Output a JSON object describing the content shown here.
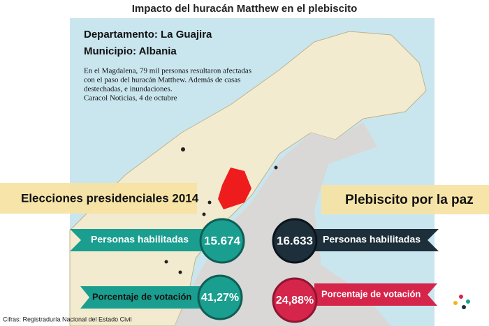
{
  "header": {
    "title": "Impacto del huracán Matthew en el plebiscito"
  },
  "location": {
    "department": "Departamento: La Guajira",
    "municipality": "Municipio: Albania"
  },
  "note": {
    "lines": [
      "En el Magdalena, 79 mil personas resultaron afectadas",
      "con el paso del huracán Matthew. Además de casas",
      "destechadas, e inundaciones.",
      "Caracol Noticias, 4 de octubre"
    ]
  },
  "left": {
    "heading": "Elecciones presidenciales 2014",
    "items": [
      {
        "label": "Personas habilitadas",
        "value": "15.674"
      },
      {
        "label": "Porcentaje de votación",
        "value": "41,27%"
      }
    ]
  },
  "right": {
    "heading": "Plebiscito por la paz",
    "items": [
      {
        "label": "Personas habilitadas",
        "value": "16.633"
      },
      {
        "label": "Porcentaje de votación",
        "value": "24,88%"
      }
    ]
  },
  "footer": {
    "source": "Cifras: Registraduría Nacional del Estado Civil"
  }
}
